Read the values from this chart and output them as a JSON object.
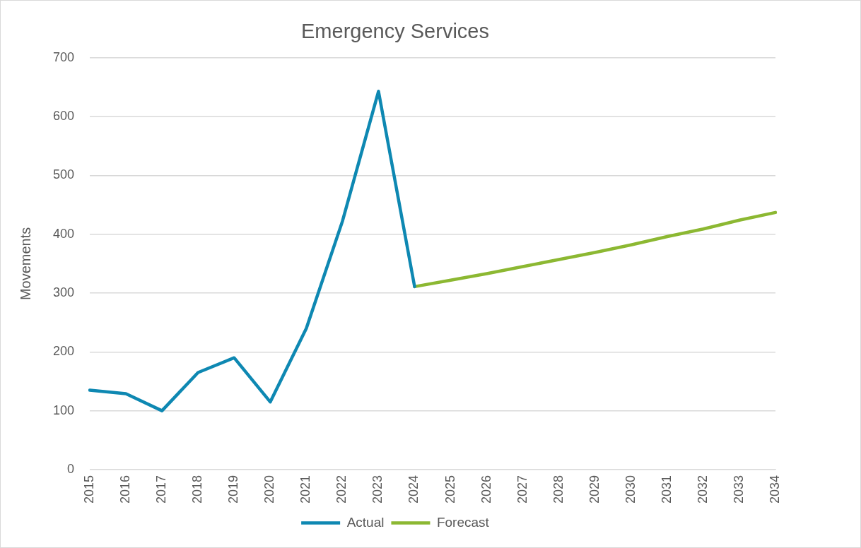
{
  "chart_data": {
    "type": "line",
    "title": "Emergency Services",
    "ylabel": "Movements",
    "categories": [
      "2015",
      "2016",
      "2017",
      "2018",
      "2019",
      "2020",
      "2021",
      "2022",
      "2023",
      "2024",
      "2025",
      "2026",
      "2027",
      "2028",
      "2029",
      "2030",
      "2031",
      "2032",
      "2033",
      "2034"
    ],
    "series": [
      {
        "name": "Actual",
        "color": "#0e88b2",
        "values": [
          135,
          129,
          100,
          165,
          190,
          115,
          240,
          422,
          643,
          311,
          null,
          null,
          null,
          null,
          null,
          null,
          null,
          null,
          null,
          null
        ]
      },
      {
        "name": "Forecast",
        "color": "#8cb832",
        "values": [
          null,
          null,
          null,
          null,
          null,
          null,
          null,
          null,
          null,
          311,
          322,
          333,
          345,
          357,
          369,
          382,
          396,
          409,
          424,
          437
        ]
      }
    ],
    "ylim": [
      0,
      700
    ],
    "yticks": [
      0,
      100,
      200,
      300,
      400,
      500,
      600,
      700
    ],
    "grid": "y",
    "legend": "bottom",
    "marker": "none",
    "line_style": "solid"
  }
}
